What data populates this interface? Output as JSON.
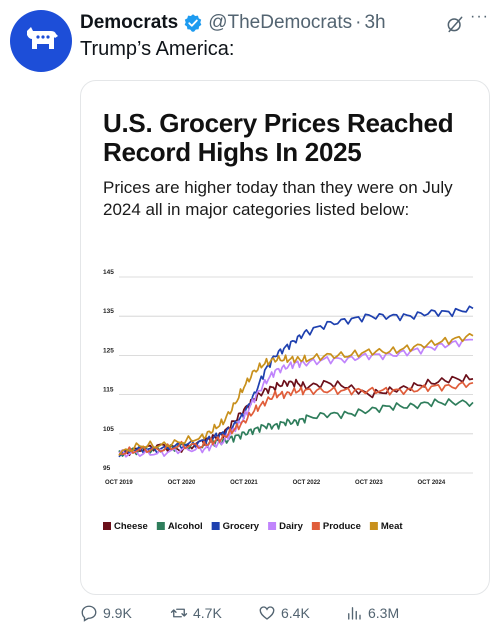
{
  "tweet": {
    "author_name": "Democrats",
    "handle": "@TheDemocrats",
    "separator": "·",
    "time": "3h",
    "more_label": "···",
    "text": "Trump’s America:"
  },
  "card": {
    "title": "U.S. Grocery Prices Reached Record Highs In 2025",
    "subtitle": "Prices are higher today than they were on July 2024 all in major categories listed below:"
  },
  "chart_data": {
    "type": "line",
    "title": "U.S. Grocery Prices Reached Record Highs In 2025",
    "subtitle": "Prices are higher today than they were on July 2024 all in major categories listed below:",
    "x_ticks": [
      "OCT 2019",
      "OCT 2020",
      "OCT 2021",
      "OCT 2022",
      "OCT 2023",
      "OCT 2024"
    ],
    "x_tick_values": [
      0,
      12,
      24,
      36,
      48,
      60
    ],
    "xlim": [
      0,
      68
    ],
    "y_ticks": [
      95,
      105,
      115,
      125,
      135,
      145
    ],
    "ylim": [
      95,
      145
    ],
    "grid": true,
    "legend_position": "bottom",
    "x": [
      0,
      4,
      8,
      12,
      16,
      18,
      20,
      22,
      24,
      26,
      28,
      30,
      32,
      34,
      36,
      40,
      44,
      48,
      52,
      56,
      60,
      64,
      68
    ],
    "series": [
      {
        "name": "Cheese",
        "color": "#6b0f1a",
        "values": [
          100,
          101,
          102,
          101,
          103,
          104,
          105,
          108,
          111,
          114,
          116,
          117,
          118,
          118,
          117,
          118,
          117,
          115,
          116,
          117,
          118,
          119,
          119
        ]
      },
      {
        "name": "Alcohol",
        "color": "#2e7d5b",
        "values": [
          100,
          101,
          101,
          102,
          102,
          103,
          103,
          104,
          105,
          106,
          107,
          107,
          108,
          108,
          109,
          110,
          110,
          111,
          112,
          112,
          113,
          113,
          113
        ]
      },
      {
        "name": "Grocery",
        "color": "#1e40af",
        "values": [
          100,
          101,
          101,
          102,
          103,
          104,
          105,
          107,
          110,
          115,
          121,
          125,
          127,
          129,
          131,
          133,
          134,
          135,
          135,
          135,
          136,
          136,
          137
        ]
      },
      {
        "name": "Dairy",
        "color": "#c084fc",
        "values": [
          100,
          100,
          100,
          101,
          101,
          102,
          103,
          106,
          109,
          114,
          118,
          121,
          122,
          123,
          123,
          124,
          124,
          125,
          125,
          126,
          127,
          128,
          129
        ]
      },
      {
        "name": "Produce",
        "color": "#e05d3a",
        "values": [
          100,
          101,
          101,
          102,
          102,
          103,
          104,
          106,
          108,
          111,
          113,
          115,
          115,
          116,
          116,
          116,
          116,
          116,
          116,
          116,
          117,
          117,
          118
        ]
      },
      {
        "name": "Meat",
        "color": "#c8901c",
        "values": [
          100,
          102,
          102,
          103,
          104,
          106,
          108,
          112,
          117,
          121,
          123,
          124,
          124,
          124,
          124,
          125,
          125,
          126,
          126,
          127,
          128,
          129,
          130
        ]
      }
    ]
  },
  "actions": {
    "replies": "9.9K",
    "reposts": "4.7K",
    "likes": "6.4K",
    "views": "6.3M"
  },
  "colors": {
    "avatar_bg": "#1d4ed8",
    "verified": "#1d9bf0",
    "secondary_text": "#536471"
  },
  "icons": [
    "donkey-logo-icon",
    "verified-badge-icon",
    "grok-icon",
    "more-icon",
    "reply-icon",
    "repost-icon",
    "like-icon",
    "views-icon"
  ]
}
